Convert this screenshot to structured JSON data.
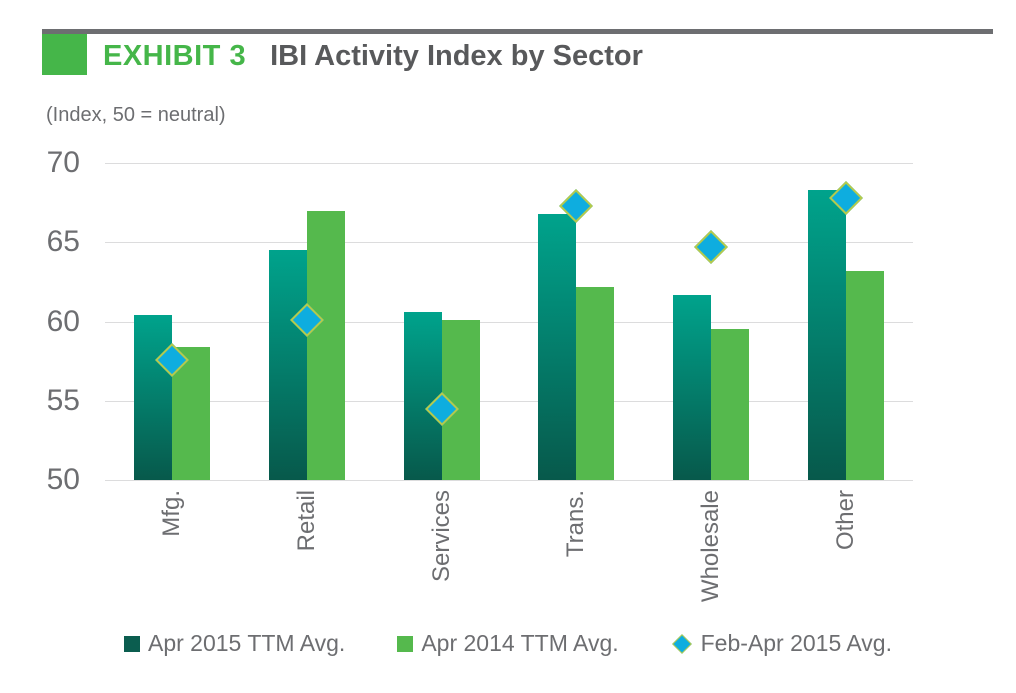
{
  "header": {
    "exhibit_label": "EXHIBIT 3",
    "title": "IBI Activity Index by Sector",
    "subtitle": "(Index, 50 = neutral)"
  },
  "colors": {
    "accent_green": "#45b649",
    "title_gray": "#58595b",
    "label_gray": "#6d6e71",
    "gridline": "#dcdcdd",
    "series1_top": "#00a38c",
    "series1_bottom": "#07594b",
    "series1_legend": "#0b5d4f",
    "series2": "#55b94d",
    "series3_fill": "#0eaddf",
    "series3_border": "#b5ca4b"
  },
  "chart_data": {
    "type": "bar",
    "title": "IBI Activity Index by Sector",
    "xlabel": "",
    "ylabel": "Index, 50 = neutral",
    "categories": [
      "Mfg.",
      "Retail",
      "Services",
      "Trans.",
      "Wholesale",
      "Other"
    ],
    "series": [
      {
        "name": "Apr 2015 TTM Avg.",
        "type": "bar",
        "values": [
          60.4,
          64.5,
          60.6,
          66.8,
          61.7,
          68.3
        ]
      },
      {
        "name": "Apr 2014 TTM Avg.",
        "type": "bar",
        "values": [
          58.4,
          67.0,
          60.1,
          62.2,
          59.5,
          63.2
        ]
      },
      {
        "name": "Feb-Apr 2015 Avg.",
        "type": "scatter-diamond",
        "values": [
          57.6,
          60.1,
          54.5,
          67.3,
          64.7,
          67.8
        ]
      }
    ],
    "ylim": [
      50,
      70
    ],
    "yticks": [
      50,
      55,
      60,
      65,
      70
    ],
    "grid": true,
    "legend_position": "bottom"
  }
}
